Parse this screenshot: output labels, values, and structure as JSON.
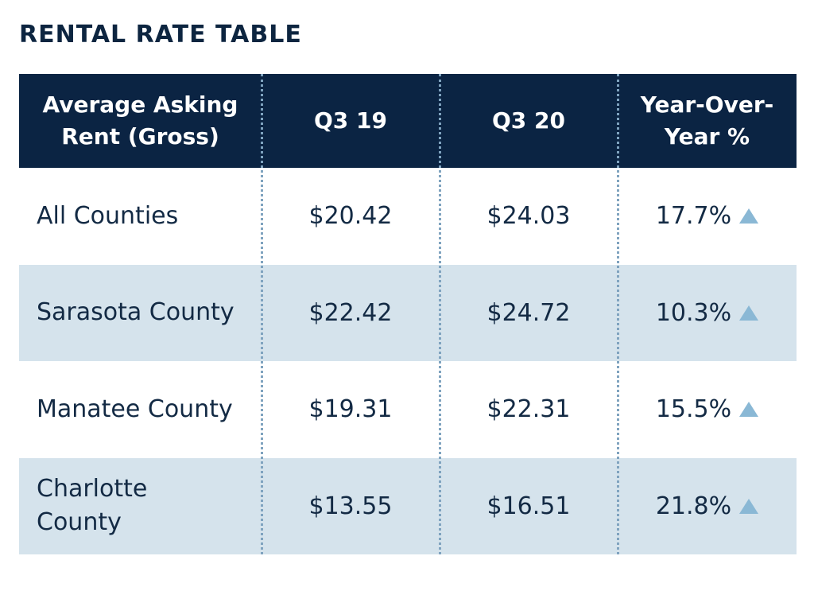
{
  "title": "RENTAL RATE TABLE",
  "colors": {
    "header_bg": "#0b2443",
    "alt_row_bg": "#d5e3ec",
    "arrow": "#8ab8d5",
    "text": "#132a44"
  },
  "chart_data": {
    "type": "table",
    "title": "RENTAL RATE TABLE",
    "columns": [
      "Average Asking\nRent (Gross)",
      "Q3 19",
      "Q3 20",
      "Year-Over-\nYear %"
    ],
    "rows": [
      {
        "label": "All Counties",
        "q3_19": "$20.42",
        "q3_20": "$24.03",
        "yoy": "17.7%",
        "trend_icon": "up-triangle-icon"
      },
      {
        "label": "Sarasota County",
        "q3_19": "$22.42",
        "q3_20": "$24.72",
        "yoy": "10.3%",
        "trend_icon": "up-triangle-icon"
      },
      {
        "label": "Manatee County",
        "q3_19": "$19.31",
        "q3_20": "$22.31",
        "yoy": "15.5%",
        "trend_icon": "up-triangle-icon"
      },
      {
        "label": "Charlotte\nCounty",
        "q3_19": "$13.55",
        "q3_20": "$16.51",
        "yoy": "21.8%",
        "trend_icon": "up-triangle-icon"
      }
    ]
  }
}
